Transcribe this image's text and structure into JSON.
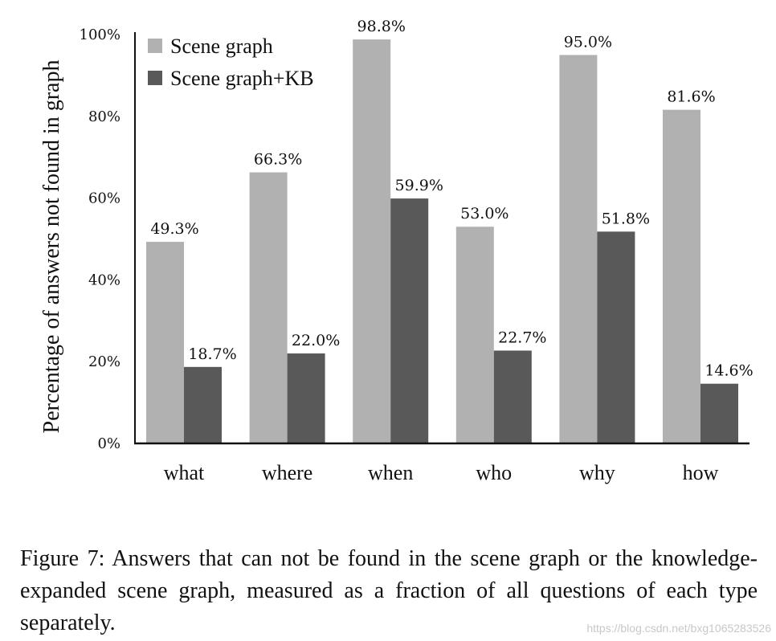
{
  "chart_data": {
    "type": "bar",
    "title": "",
    "xlabel": "",
    "ylabel": "Percentage of answers not found in graph",
    "categories": [
      "what",
      "where",
      "when",
      "who",
      "why",
      "how"
    ],
    "series": [
      {
        "name": "Scene graph",
        "color": "#b1b1b1",
        "values": [
          49.3,
          66.3,
          98.8,
          53.0,
          95.0,
          81.6
        ],
        "labels": [
          "49.3%",
          "66.3%",
          "98.8%",
          "53.0%",
          "95.0%",
          "81.6%"
        ]
      },
      {
        "name": "Scene graph+KB",
        "color": "#595959",
        "values": [
          18.7,
          22.0,
          59.9,
          22.7,
          51.8,
          14.6
        ],
        "labels": [
          "18.7%",
          "22.0%",
          "59.9%",
          "22.7%",
          "51.8%",
          "14.6%"
        ]
      }
    ],
    "yticks": [
      "0%",
      "20%",
      "40%",
      "60%",
      "80%",
      "100%"
    ],
    "ytick_values": [
      0,
      20,
      40,
      60,
      80,
      100
    ],
    "ylim": [
      0,
      100
    ],
    "grid": false,
    "legend_position": "top-left"
  },
  "caption": "Figure 7: Answers that can not be found in the scene graph or the knowledge-expanded scene graph, measured as a fraction of all questions of each type separately.",
  "watermark": "https://blog.csdn.net/bxg1065283526"
}
